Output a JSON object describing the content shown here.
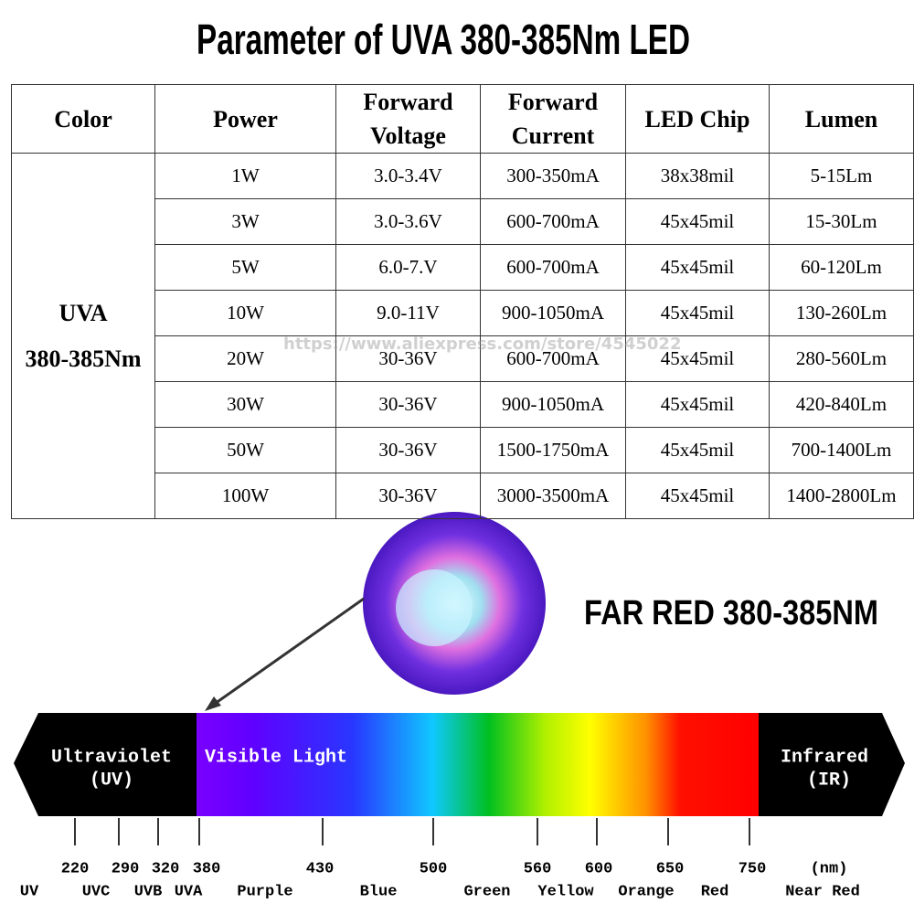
{
  "title": "Parameter of UVA  380-385Nm LED",
  "table": {
    "headers": [
      "Color",
      "Power",
      "Forward Voltage",
      "Forward Current",
      "LED Chip",
      "Lumen"
    ],
    "group_label": [
      "UVA",
      "380-385Nm"
    ],
    "rows": [
      [
        "1W",
        "3.0-3.4V",
        "300-350mA",
        "38x38mil",
        "5-15Lm"
      ],
      [
        "3W",
        "3.0-3.6V",
        "600-700mA",
        "45x45mil",
        "15-30Lm"
      ],
      [
        "5W",
        "6.0-7.V",
        "600-700mA",
        "45x45mil",
        "60-120Lm"
      ],
      [
        "10W",
        "9.0-11V",
        "900-1050mA",
        "45x45mil",
        "130-260Lm"
      ],
      [
        "20W",
        "30-36V",
        "600-700mA",
        "45x45mil",
        "280-560Lm"
      ],
      [
        "30W",
        "30-36V",
        "900-1050mA",
        "45x45mil",
        "420-840Lm"
      ],
      [
        "50W",
        "30-36V",
        "1500-1750mA",
        "45x45mil",
        "700-1400Lm"
      ],
      [
        "100W",
        "30-36V",
        "3000-3500mA",
        "45x45mil",
        "1400-2800Lm"
      ]
    ]
  },
  "watermark": "https://www.aliexpress.com/store/4545022",
  "product_label": "FAR RED 380-385NM",
  "spectrum": {
    "regions": {
      "uv": [
        "Ultraviolet",
        "(UV)"
      ],
      "visible": "Visible Light",
      "ir": [
        "Infrared",
        "(IR)"
      ]
    },
    "wavelengths": [
      "220",
      "290",
      "320",
      "380",
      "430",
      "500",
      "560",
      "600",
      "650",
      "750",
      "(nm)"
    ],
    "names": [
      "UV",
      "UVC",
      "UVB",
      "UVA",
      "Purple",
      "Blue",
      "Green",
      "Yellow",
      "Orange",
      "Red",
      "Near Red"
    ]
  }
}
